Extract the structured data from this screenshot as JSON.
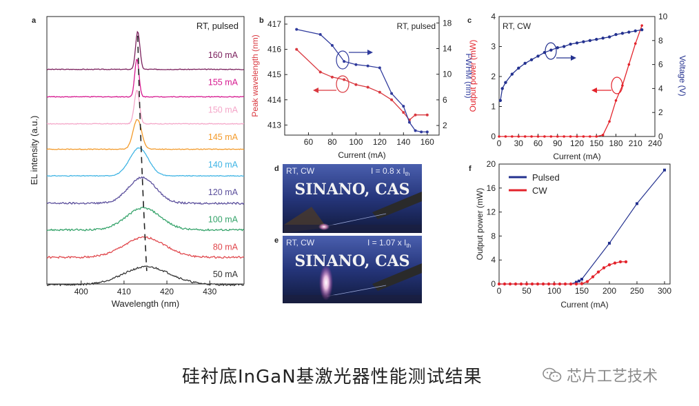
{
  "figure": {
    "caption": "硅衬底InGaN基激光器性能测试结果",
    "watermark": "芯片工艺技术",
    "photos": [
      {
        "label": "d",
        "cond": "RT, CW",
        "current": "I = 0.8 x I",
        "sub": "th",
        "text": "SINANO, CAS"
      },
      {
        "label": "e",
        "cond": "RT, CW",
        "current": "I = 1.07 x I",
        "sub": "th",
        "text": "SINANO, CAS"
      }
    ]
  },
  "chart_data": [
    {
      "panel": "a",
      "type": "line",
      "annotation": "RT, pulsed",
      "xlabel": "Wavelength (nm)",
      "ylabel": "EL intensity (a.u.)",
      "xlim": [
        392,
        438
      ],
      "xticks": [
        400,
        410,
        420,
        430
      ],
      "series": [
        {
          "name": "160 mA",
          "color": "#7a1f5c",
          "peak": 413.2,
          "width": 0.5,
          "height": 0.95,
          "base": 0.02
        },
        {
          "name": "155 mA",
          "color": "#d6188f",
          "peak": 413.0,
          "width": 0.5,
          "height": 0.95,
          "base": 0.02
        },
        {
          "name": "150 mA",
          "color": "#f4a6c8",
          "peak": 413.0,
          "width": 0.6,
          "height": 0.85,
          "base": 0.03
        },
        {
          "name": "145 mA",
          "color": "#f39a2a",
          "peak": 413.1,
          "width": 1.0,
          "height": 0.75,
          "base": 0.08
        },
        {
          "name": "140 mA",
          "color": "#3fb4e4",
          "peak": 413.5,
          "width": 2.2,
          "height": 0.7,
          "base": 0.1
        },
        {
          "name": "120 mA",
          "color": "#5b4f9c",
          "peak": 414.2,
          "width": 3.2,
          "height": 0.65,
          "base": 0.1
        },
        {
          "name": "100 mA",
          "color": "#35a36a",
          "peak": 414.5,
          "width": 4.0,
          "height": 0.55,
          "base": 0.12
        },
        {
          "name": "80 mA",
          "color": "#e0474c",
          "peak": 414.8,
          "width": 4.8,
          "height": 0.5,
          "base": 0.12
        },
        {
          "name": "50 mA",
          "color": "#333333",
          "peak": 415.3,
          "width": 5.5,
          "height": 0.45,
          "base": 0.12
        }
      ]
    },
    {
      "panel": "b",
      "type": "line",
      "annotation": "RT, pulsed",
      "xlabel": "Current (mA)",
      "ylabel": "Peak wavelength (nm)",
      "y2label": "FWHM (nm)",
      "xlim": [
        40,
        170
      ],
      "ylim": [
        412.6,
        417.3
      ],
      "y2lim": [
        0.5,
        19
      ],
      "xticks": [
        60,
        80,
        100,
        120,
        140,
        160
      ],
      "yticks": [
        413,
        414,
        415,
        416,
        417
      ],
      "y2ticks": [
        2,
        6,
        10,
        14,
        18
      ],
      "peak_wavelength": {
        "color": "#d9383f",
        "x": [
          50,
          70,
          80,
          90,
          100,
          110,
          120,
          130,
          140,
          145,
          150,
          160
        ],
        "y": [
          416.0,
          415.1,
          414.9,
          414.8,
          414.6,
          414.5,
          414.3,
          414.0,
          413.5,
          413.2,
          413.4,
          413.4
        ]
      },
      "fwhm": {
        "color": "#2f3a9c",
        "x": [
          50,
          70,
          80,
          90,
          100,
          110,
          120,
          130,
          140,
          145,
          150,
          155,
          160
        ],
        "y": [
          17.0,
          16.2,
          14.5,
          12.0,
          11.5,
          11.3,
          11.0,
          7.0,
          5.0,
          2.5,
          1.2,
          1.0,
          1.0
        ]
      }
    },
    {
      "panel": "c",
      "type": "line",
      "annotation": "RT, CW",
      "xlabel": "Current (mA)",
      "ylabel": "Output power (mW)",
      "y2label": "Voltage (V)",
      "xlim": [
        0,
        240
      ],
      "ylim": [
        0,
        4
      ],
      "y2lim": [
        0,
        10
      ],
      "xticks": [
        0,
        30,
        60,
        90,
        120,
        150,
        180,
        210,
        240
      ],
      "yticks": [
        0,
        1,
        2,
        3,
        4
      ],
      "y2ticks": [
        0,
        2,
        4,
        6,
        8,
        10
      ],
      "power": {
        "color": "#e3232b",
        "x": [
          0,
          10,
          20,
          30,
          40,
          50,
          60,
          70,
          80,
          90,
          100,
          110,
          120,
          130,
          140,
          150,
          160,
          170,
          180,
          190,
          200,
          210,
          220
        ],
        "y": [
          0,
          0,
          0,
          0,
          0,
          0,
          0,
          0,
          0,
          0,
          0,
          0,
          0,
          0,
          0,
          0,
          0.05,
          0.5,
          1.2,
          1.7,
          2.4,
          3.1,
          3.7
        ]
      },
      "voltage": {
        "color": "#23318f",
        "x": [
          2,
          5,
          10,
          20,
          30,
          40,
          50,
          60,
          70,
          80,
          90,
          100,
          110,
          120,
          130,
          140,
          150,
          160,
          170,
          180,
          190,
          200,
          210,
          220
        ],
        "y": [
          3.0,
          4.0,
          4.5,
          5.2,
          5.7,
          6.1,
          6.4,
          6.7,
          7.0,
          7.2,
          7.4,
          7.5,
          7.7,
          7.8,
          7.9,
          8.0,
          8.1,
          8.2,
          8.3,
          8.5,
          8.6,
          8.7,
          8.8,
          8.9
        ]
      }
    },
    {
      "panel": "f",
      "type": "line",
      "xlabel": "Current (mA)",
      "ylabel": "Output power (mW)",
      "xlim": [
        0,
        310
      ],
      "ylim": [
        0,
        20
      ],
      "xticks": [
        0,
        50,
        100,
        150,
        200,
        250,
        300
      ],
      "yticks": [
        0,
        4,
        8,
        12,
        16,
        20
      ],
      "series": [
        {
          "name": "Pulsed",
          "color": "#23318f",
          "x": [
            0,
            10,
            20,
            30,
            40,
            50,
            60,
            70,
            80,
            90,
            100,
            110,
            120,
            130,
            140,
            145,
            150,
            200,
            250,
            300
          ],
          "y": [
            0,
            0,
            0,
            0,
            0,
            0,
            0,
            0,
            0,
            0,
            0,
            0,
            0,
            0,
            0.3,
            0.5,
            0.8,
            6.8,
            13.4,
            19.0
          ]
        },
        {
          "name": "CW",
          "color": "#e3232b",
          "x": [
            0,
            10,
            20,
            30,
            40,
            50,
            60,
            70,
            80,
            90,
            100,
            110,
            120,
            130,
            140,
            150,
            160,
            170,
            180,
            190,
            200,
            210,
            220,
            230
          ],
          "y": [
            0,
            0,
            0,
            0,
            0,
            0,
            0,
            0,
            0,
            0,
            0,
            0,
            0,
            0,
            0,
            0.05,
            0.4,
            1.2,
            2.0,
            2.7,
            3.2,
            3.5,
            3.7,
            3.7
          ]
        }
      ]
    }
  ]
}
